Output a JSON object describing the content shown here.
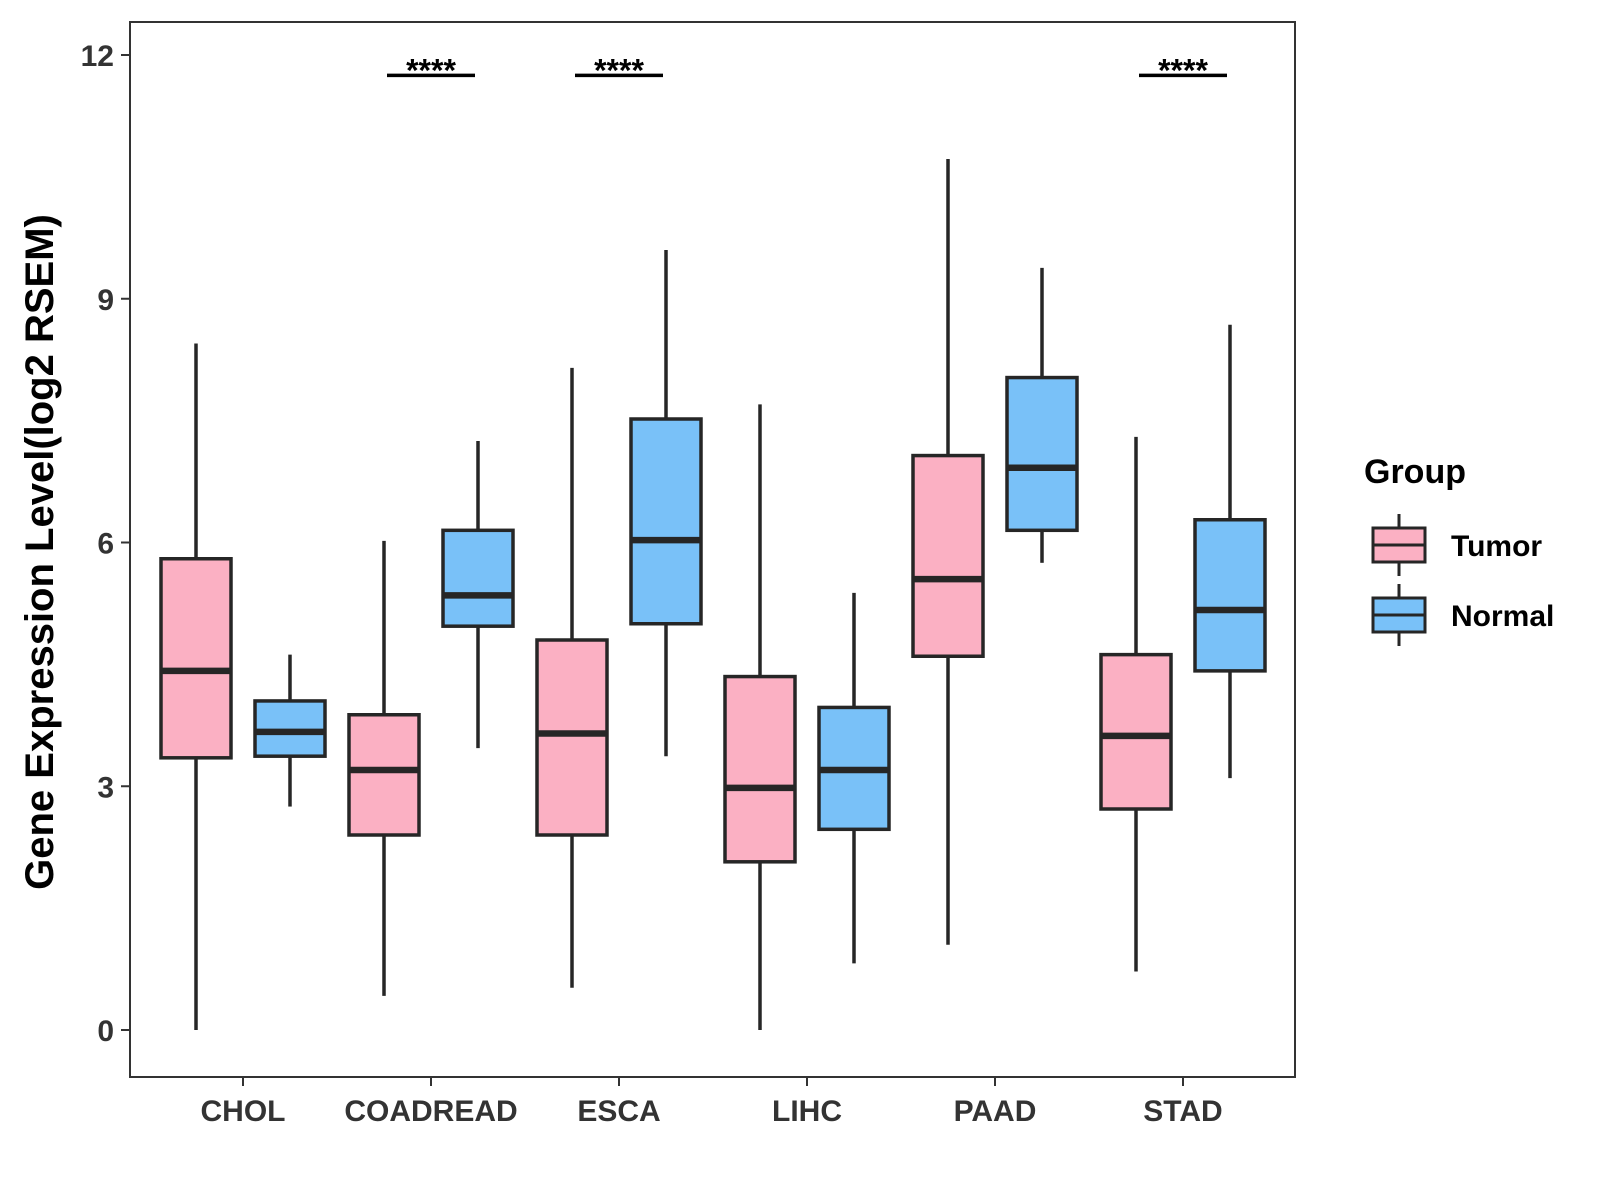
{
  "chart_data": {
    "type": "boxplot",
    "title": "",
    "xlabel": "",
    "ylabel": "Gene Expression Level(log2 RSEM)",
    "ylim": [
      -0.6,
      12.4
    ],
    "yticks": [
      0,
      3,
      6,
      9,
      12
    ],
    "ytick_labels": [
      "0",
      "3",
      "6",
      "9",
      "12"
    ],
    "categories": [
      "CHOL",
      "COADREAD",
      "ESCA",
      "LIHC",
      "PAAD",
      "STAD"
    ],
    "legend": {
      "title": "Group",
      "position": "right",
      "entries": [
        "Tumor",
        "Normal"
      ]
    },
    "colors": {
      "Tumor": "#fbb0c3",
      "Normal": "#79c1f8",
      "outline": "#262626"
    },
    "series": [
      {
        "name": "Tumor",
        "boxes": [
          {
            "category": "CHOL",
            "min": 0.0,
            "q1": 3.35,
            "median": 4.42,
            "q3": 5.8,
            "max": 8.45
          },
          {
            "category": "COADREAD",
            "min": 0.42,
            "q1": 2.4,
            "median": 3.2,
            "q3": 3.88,
            "max": 6.02
          },
          {
            "category": "ESCA",
            "min": 0.52,
            "q1": 2.4,
            "median": 3.65,
            "q3": 4.8,
            "max": 8.15
          },
          {
            "category": "LIHC",
            "min": 0.0,
            "q1": 2.07,
            "median": 2.98,
            "q3": 4.35,
            "max": 7.7
          },
          {
            "category": "PAAD",
            "min": 1.05,
            "q1": 4.6,
            "median": 5.55,
            "q3": 7.07,
            "max": 10.72
          },
          {
            "category": "STAD",
            "min": 0.72,
            "q1": 2.72,
            "median": 3.62,
            "q3": 4.62,
            "max": 7.3
          }
        ]
      },
      {
        "name": "Normal",
        "boxes": [
          {
            "category": "CHOL",
            "min": 2.75,
            "q1": 3.37,
            "median": 3.67,
            "q3": 4.05,
            "max": 4.62
          },
          {
            "category": "COADREAD",
            "min": 3.47,
            "q1": 4.97,
            "median": 5.35,
            "q3": 6.15,
            "max": 7.25
          },
          {
            "category": "ESCA",
            "min": 3.37,
            "q1": 5.0,
            "median": 6.03,
            "q3": 7.52,
            "max": 9.6
          },
          {
            "category": "LIHC",
            "min": 0.82,
            "q1": 2.47,
            "median": 3.2,
            "q3": 3.97,
            "max": 5.38
          },
          {
            "category": "PAAD",
            "min": 5.75,
            "q1": 6.15,
            "median": 6.92,
            "q3": 8.03,
            "max": 9.38
          },
          {
            "category": "STAD",
            "min": 3.1,
            "q1": 4.42,
            "median": 5.17,
            "q3": 6.28,
            "max": 8.68
          }
        ]
      }
    ],
    "annotations": [
      {
        "category": "COADREAD",
        "text": "****",
        "y": 11.75
      },
      {
        "category": "ESCA",
        "text": "****",
        "y": 11.75
      },
      {
        "category": "STAD",
        "text": "****",
        "y": 11.75
      }
    ]
  }
}
